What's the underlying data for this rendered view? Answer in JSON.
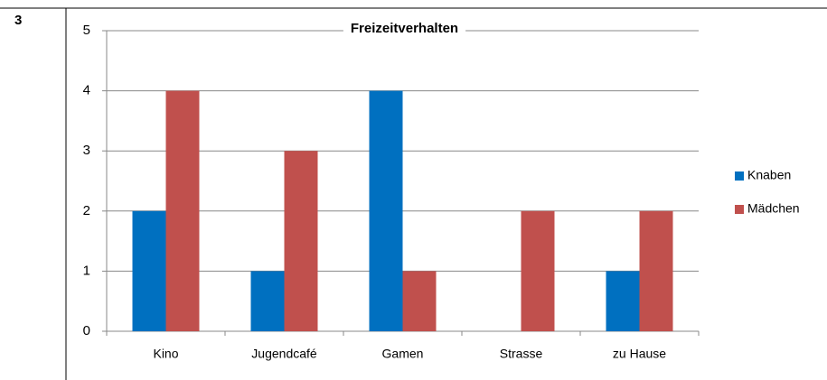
{
  "question_number": "3",
  "chart_data": {
    "type": "bar",
    "title": "Freizeitverhalten",
    "categories": [
      "Kino",
      "Jugendcafé",
      "Gamen",
      "Strasse",
      "zu Hause"
    ],
    "series": [
      {
        "name": "Knaben",
        "color": "#0070c0",
        "values": [
          2,
          1,
          4,
          0,
          1
        ]
      },
      {
        "name": "Mädchen",
        "color": "#c0504d",
        "values": [
          4,
          3,
          1,
          2,
          2
        ]
      }
    ],
    "ylim": [
      0,
      5
    ],
    "yticks": [
      0,
      1,
      2,
      3,
      4,
      5
    ],
    "grid": true,
    "legend": "right"
  }
}
